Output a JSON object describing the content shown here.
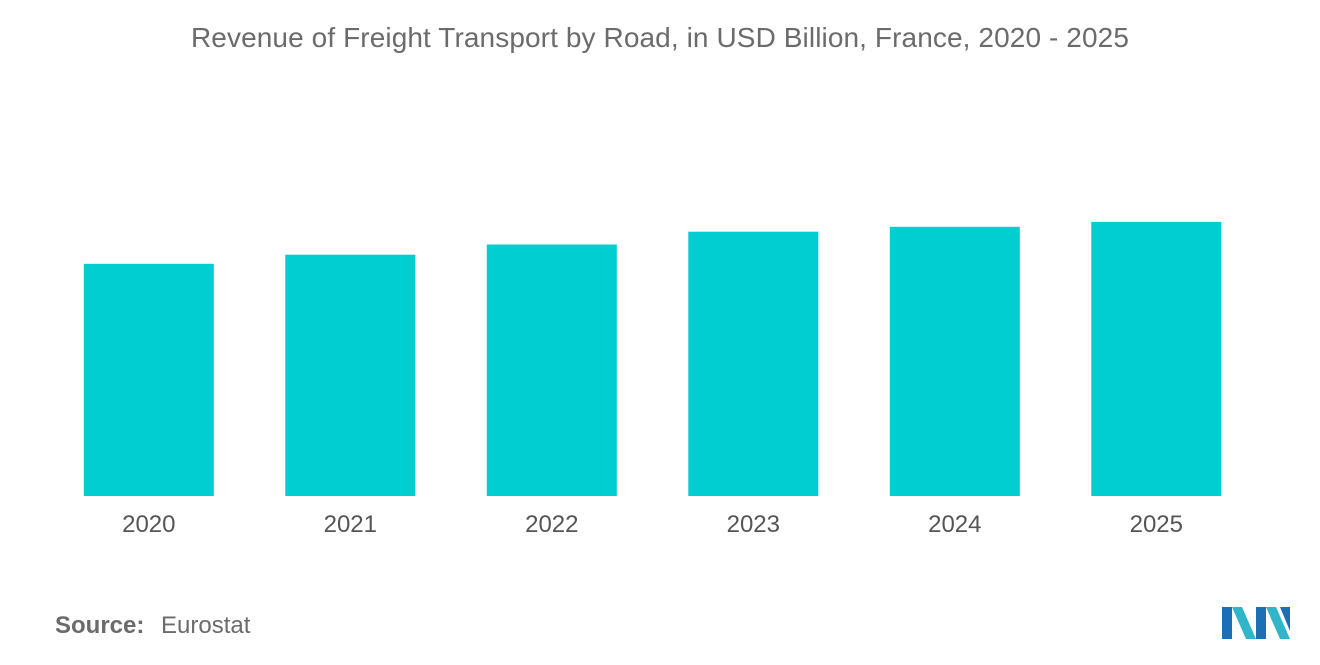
{
  "chart_data": {
    "type": "bar",
    "title": "Revenue of Freight Transport by Road, in USD Billion, France, 2020 - 2025",
    "categories": [
      "2020",
      "2021",
      "2022",
      "2023",
      "2024",
      "2025"
    ],
    "values": [
      56.5,
      58.7,
      61.2,
      64.3,
      65.5,
      66.7
    ],
    "xlabel": "",
    "ylabel": "",
    "ylim": [
      0,
      100
    ],
    "grid": false,
    "legend": "none",
    "bar_color": "#00ced1"
  },
  "source": {
    "label": "Source:",
    "value": "Eurostat"
  },
  "logo": {
    "icon": "mordor-intelligence-logo-icon",
    "colors": [
      "#1b6fb5",
      "#2fb7c9"
    ]
  }
}
